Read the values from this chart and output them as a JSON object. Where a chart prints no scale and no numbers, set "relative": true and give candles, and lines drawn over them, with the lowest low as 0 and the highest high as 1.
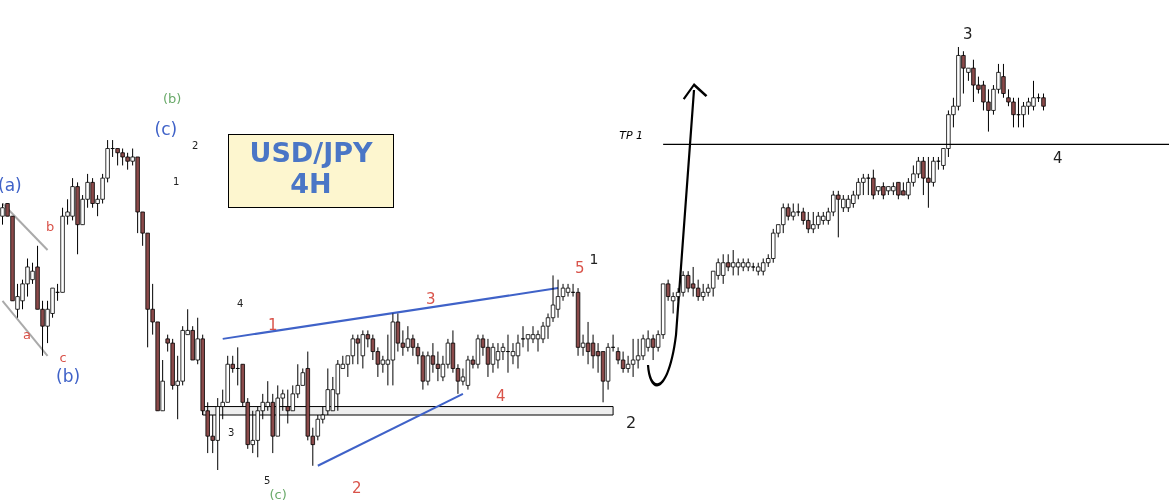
{
  "chart_data": {
    "type": "candlestick",
    "title": "USD/JPY 4H",
    "relative": true,
    "categories": [
      null,
      null,
      null,
      null,
      null,
      null,
      null,
      null,
      null,
      null,
      null,
      null,
      null,
      null,
      null,
      null,
      null,
      null,
      null,
      null,
      null,
      null,
      null,
      null,
      null,
      null,
      null,
      null,
      null,
      null,
      null,
      null,
      null,
      null,
      null,
      null,
      null,
      null,
      null,
      null,
      null,
      null,
      null,
      null,
      null,
      null,
      null,
      null,
      null,
      null,
      null,
      null,
      null,
      null,
      null,
      null,
      null,
      null,
      null,
      null,
      null,
      null,
      null,
      null,
      null,
      null,
      null,
      null,
      null,
      null,
      null,
      null,
      null,
      null,
      null,
      null,
      null,
      null,
      null,
      null,
      null,
      null,
      null,
      null,
      null,
      null,
      null,
      null,
      null,
      null,
      null,
      null,
      null,
      null,
      null,
      null,
      null,
      null,
      null,
      null,
      null,
      null,
      null,
      null,
      null,
      null,
      null,
      null,
      null,
      null,
      null,
      null,
      null,
      null,
      null,
      null,
      null,
      null,
      null,
      null,
      null,
      null,
      null,
      null,
      null,
      null,
      null,
      null,
      null,
      null,
      null,
      null,
      null,
      null,
      null,
      null,
      null,
      null,
      null,
      null,
      null,
      null,
      null,
      null,
      null,
      null,
      null,
      null,
      null,
      null,
      null,
      null,
      null,
      null,
      null,
      null,
      null,
      null,
      null,
      null,
      null,
      null,
      null,
      null,
      null,
      null,
      null,
      null,
      null,
      null,
      null,
      null,
      null,
      null,
      null,
      null,
      null,
      null,
      null,
      null,
      null,
      null,
      null,
      null,
      null,
      null,
      null,
      null,
      null,
      null,
      null,
      null,
      null,
      null,
      null,
      null,
      null,
      null,
      null,
      null,
      null,
      null,
      null,
      null,
      null,
      null,
      null,
      null,
      null
    ],
    "ohlc": [
      [
        0.6,
        0.63,
        0.58,
        0.62
      ],
      [
        0.63,
        0.63,
        0.6,
        0.6
      ],
      [
        0.6,
        0.6,
        0.4,
        0.4
      ],
      [
        0.38,
        0.44,
        0.36,
        0.41
      ],
      [
        0.4,
        0.45,
        0.38,
        0.44
      ],
      [
        0.44,
        0.5,
        0.41,
        0.48
      ],
      [
        0.45,
        0.49,
        0.44,
        0.47
      ],
      [
        0.48,
        0.53,
        0.38,
        0.38
      ],
      [
        0.38,
        0.4,
        0.27,
        0.34
      ],
      [
        0.34,
        0.4,
        0.3,
        0.38
      ],
      [
        0.37,
        0.43,
        0.36,
        0.43
      ],
      [
        0.42,
        0.44,
        0.4,
        0.42
      ],
      [
        0.42,
        0.62,
        0.42,
        0.6
      ],
      [
        0.6,
        0.64,
        0.58,
        0.61
      ],
      [
        0.6,
        0.69,
        0.59,
        0.67
      ],
      [
        0.67,
        0.68,
        0.51,
        0.58
      ],
      [
        0.58,
        0.65,
        0.58,
        0.64
      ],
      [
        0.64,
        0.7,
        0.62,
        0.68
      ],
      [
        0.68,
        0.69,
        0.62,
        0.63
      ],
      [
        0.63,
        0.65,
        0.6,
        0.64
      ],
      [
        0.64,
        0.7,
        0.63,
        0.69
      ],
      [
        0.69,
        0.78,
        0.68,
        0.76
      ],
      [
        0.76,
        0.78,
        0.74,
        0.76
      ],
      [
        0.76,
        0.76,
        0.72,
        0.75
      ],
      [
        0.75,
        0.76,
        0.72,
        0.74
      ],
      [
        0.74,
        0.75,
        0.71,
        0.73
      ],
      [
        0.73,
        0.76,
        0.72,
        0.74
      ],
      [
        0.74,
        0.74,
        0.56,
        0.61
      ],
      [
        0.61,
        0.61,
        0.53,
        0.56
      ],
      [
        0.56,
        0.56,
        0.29,
        0.38
      ],
      [
        0.38,
        0.44,
        0.32,
        0.35
      ],
      [
        0.35,
        0.35,
        0.14,
        0.14
      ],
      [
        0.14,
        0.26,
        0.14,
        0.21
      ],
      [
        0.31,
        0.32,
        0.28,
        0.3
      ],
      [
        0.3,
        0.31,
        0.19,
        0.2
      ],
      [
        0.2,
        0.27,
        0.12,
        0.21
      ],
      [
        0.21,
        0.34,
        0.2,
        0.33
      ],
      [
        0.32,
        0.38,
        0.32,
        0.33
      ],
      [
        0.33,
        0.34,
        0.26,
        0.26
      ],
      [
        0.26,
        0.36,
        0.25,
        0.31
      ],
      [
        0.31,
        0.32,
        0.13,
        0.14
      ],
      [
        0.14,
        0.16,
        0.04,
        0.08
      ],
      [
        0.08,
        0.13,
        0.04,
        0.07
      ],
      [
        0.07,
        0.17,
        0.0,
        0.15
      ],
      [
        0.15,
        0.19,
        0.12,
        0.16
      ],
      [
        0.16,
        0.27,
        0.16,
        0.25
      ],
      [
        0.25,
        0.27,
        0.23,
        0.24
      ],
      [
        0.24,
        0.29,
        0.2,
        0.24
      ],
      [
        0.25,
        0.25,
        0.15,
        0.16
      ],
      [
        0.16,
        0.17,
        0.05,
        0.06
      ],
      [
        0.06,
        0.14,
        0.04,
        0.07
      ],
      [
        0.07,
        0.15,
        0.03,
        0.14
      ],
      [
        0.14,
        0.18,
        0.12,
        0.16
      ],
      [
        0.15,
        0.21,
        0.14,
        0.16
      ],
      [
        0.16,
        0.18,
        0.04,
        0.08
      ],
      [
        0.08,
        0.2,
        0.08,
        0.17
      ],
      [
        0.17,
        0.19,
        0.14,
        0.18
      ],
      [
        0.15,
        0.19,
        0.11,
        0.14
      ],
      [
        0.14,
        0.2,
        0.14,
        0.18
      ],
      [
        0.18,
        0.25,
        0.17,
        0.2
      ],
      [
        0.2,
        0.24,
        0.2,
        0.23
      ],
      [
        0.24,
        0.28,
        0.07,
        0.08
      ],
      [
        0.08,
        0.1,
        0.01,
        0.06
      ],
      [
        0.08,
        0.13,
        0.07,
        0.12
      ],
      [
        0.12,
        0.15,
        0.11,
        0.13
      ],
      [
        0.14,
        0.24,
        0.13,
        0.19
      ],
      [
        0.14,
        0.22,
        0.14,
        0.19
      ],
      [
        0.18,
        0.26,
        0.14,
        0.25
      ],
      [
        0.24,
        0.27,
        0.24,
        0.25
      ],
      [
        0.25,
        0.27,
        0.22,
        0.27
      ],
      [
        0.27,
        0.32,
        0.25,
        0.31
      ],
      [
        0.31,
        0.32,
        0.25,
        0.3
      ],
      [
        0.27,
        0.33,
        0.24,
        0.32
      ],
      [
        0.32,
        0.33,
        0.29,
        0.31
      ],
      [
        0.31,
        0.32,
        0.26,
        0.28
      ],
      [
        0.28,
        0.29,
        0.22,
        0.25
      ],
      [
        0.25,
        0.27,
        0.23,
        0.26
      ],
      [
        0.25,
        0.32,
        0.2,
        0.26
      ],
      [
        0.26,
        0.37,
        0.2,
        0.35
      ],
      [
        0.35,
        0.37,
        0.28,
        0.3
      ],
      [
        0.3,
        0.33,
        0.27,
        0.29
      ],
      [
        0.29,
        0.34,
        0.28,
        0.31
      ],
      [
        0.31,
        0.32,
        0.27,
        0.29
      ],
      [
        0.29,
        0.3,
        0.25,
        0.27
      ],
      [
        0.27,
        0.28,
        0.19,
        0.21
      ],
      [
        0.21,
        0.28,
        0.2,
        0.27
      ],
      [
        0.27,
        0.3,
        0.23,
        0.25
      ],
      [
        0.25,
        0.28,
        0.21,
        0.24
      ],
      [
        0.22,
        0.27,
        0.21,
        0.25
      ],
      [
        0.25,
        0.31,
        0.24,
        0.3
      ],
      [
        0.3,
        0.33,
        0.23,
        0.24
      ],
      [
        0.24,
        0.25,
        0.18,
        0.21
      ],
      [
        0.21,
        0.24,
        0.2,
        0.22
      ],
      [
        0.2,
        0.27,
        0.19,
        0.26
      ],
      [
        0.26,
        0.27,
        0.24,
        0.25
      ],
      [
        0.25,
        0.32,
        0.24,
        0.31
      ],
      [
        0.31,
        0.32,
        0.27,
        0.29
      ],
      [
        0.29,
        0.31,
        0.22,
        0.25
      ],
      [
        0.25,
        0.3,
        0.23,
        0.29
      ],
      [
        0.26,
        0.3,
        0.24,
        0.28
      ],
      [
        0.28,
        0.3,
        0.26,
        0.29
      ],
      [
        0.28,
        0.32,
        0.23,
        0.28
      ],
      [
        0.27,
        0.3,
        0.25,
        0.28
      ],
      [
        0.27,
        0.32,
        0.24,
        0.3
      ],
      [
        0.31,
        0.34,
        0.29,
        0.31
      ],
      [
        0.31,
        0.32,
        0.28,
        0.32
      ],
      [
        0.31,
        0.34,
        0.3,
        0.32
      ],
      [
        0.31,
        0.33,
        0.28,
        0.32
      ],
      [
        0.31,
        0.35,
        0.3,
        0.34
      ],
      [
        0.34,
        0.37,
        0.31,
        0.36
      ],
      [
        0.36,
        0.46,
        0.35,
        0.39
      ],
      [
        0.38,
        0.45,
        0.36,
        0.41
      ],
      [
        0.41,
        0.44,
        0.4,
        0.43
      ],
      [
        0.42,
        0.44,
        0.41,
        0.43
      ],
      [
        0.42,
        0.44,
        0.41,
        0.42
      ],
      [
        0.42,
        0.43,
        0.27,
        0.29
      ],
      [
        0.29,
        0.32,
        0.27,
        0.3
      ],
      [
        0.3,
        0.35,
        0.25,
        0.28
      ],
      [
        0.3,
        0.32,
        0.24,
        0.27
      ],
      [
        0.28,
        0.3,
        0.23,
        0.27
      ],
      [
        0.28,
        0.28,
        0.16,
        0.21
      ],
      [
        0.21,
        0.3,
        0.19,
        0.29
      ],
      [
        0.29,
        0.32,
        0.28,
        0.29
      ],
      [
        0.28,
        0.29,
        0.25,
        0.26
      ],
      [
        0.26,
        0.28,
        0.23,
        0.24
      ],
      [
        0.24,
        0.27,
        0.23,
        0.25
      ],
      [
        0.25,
        0.31,
        0.22,
        0.26
      ],
      [
        0.26,
        0.31,
        0.24,
        0.27
      ],
      [
        0.27,
        0.32,
        0.26,
        0.31
      ],
      [
        0.29,
        0.33,
        0.28,
        0.31
      ],
      [
        0.31,
        0.32,
        0.26,
        0.29
      ],
      [
        0.29,
        0.33,
        0.28,
        0.32
      ],
      [
        0.32,
        0.44,
        0.31,
        0.44
      ],
      [
        0.44,
        0.45,
        0.4,
        0.41
      ],
      [
        0.4,
        0.42,
        0.37,
        0.41
      ],
      [
        0.41,
        0.43,
        0.4,
        0.42
      ],
      [
        0.42,
        0.47,
        0.41,
        0.46
      ],
      [
        0.46,
        0.47,
        0.42,
        0.43
      ],
      [
        0.44,
        0.48,
        0.41,
        0.43
      ],
      [
        0.43,
        0.45,
        0.4,
        0.41
      ],
      [
        0.41,
        0.44,
        0.4,
        0.42
      ],
      [
        0.42,
        0.44,
        0.41,
        0.43
      ],
      [
        0.43,
        0.47,
        0.41,
        0.47
      ],
      [
        0.46,
        0.5,
        0.45,
        0.49
      ],
      [
        0.46,
        0.51,
        0.44,
        0.49
      ],
      [
        0.49,
        0.51,
        0.47,
        0.48
      ],
      [
        0.48,
        0.52,
        0.46,
        0.49
      ],
      [
        0.48,
        0.5,
        0.46,
        0.49
      ],
      [
        0.48,
        0.5,
        0.47,
        0.49
      ],
      [
        0.48,
        0.5,
        0.47,
        0.49
      ],
      [
        0.48,
        0.49,
        0.47,
        0.48
      ],
      [
        0.47,
        0.49,
        0.46,
        0.48
      ],
      [
        0.47,
        0.5,
        0.46,
        0.49
      ],
      [
        0.49,
        0.51,
        0.48,
        0.5
      ],
      [
        0.5,
        0.57,
        0.49,
        0.56
      ],
      [
        0.56,
        0.58,
        0.55,
        0.58
      ],
      [
        0.58,
        0.63,
        0.56,
        0.62
      ],
      [
        0.62,
        0.63,
        0.59,
        0.6
      ],
      [
        0.6,
        0.63,
        0.59,
        0.61
      ],
      [
        0.61,
        0.63,
        0.6,
        0.61
      ],
      [
        0.61,
        0.62,
        0.58,
        0.59
      ],
      [
        0.59,
        0.61,
        0.56,
        0.57
      ],
      [
        0.57,
        0.61,
        0.56,
        0.58
      ],
      [
        0.58,
        0.61,
        0.57,
        0.6
      ],
      [
        0.59,
        0.61,
        0.58,
        0.6
      ],
      [
        0.59,
        0.62,
        0.58,
        0.61
      ],
      [
        0.61,
        0.66,
        0.6,
        0.65
      ],
      [
        0.65,
        0.66,
        0.55,
        0.64
      ],
      [
        0.62,
        0.65,
        0.61,
        0.64
      ],
      [
        0.62,
        0.65,
        0.61,
        0.64
      ],
      [
        0.63,
        0.66,
        0.62,
        0.65
      ],
      [
        0.65,
        0.69,
        0.64,
        0.68
      ],
      [
        0.68,
        0.7,
        0.65,
        0.69
      ],
      [
        0.69,
        0.7,
        0.65,
        0.69
      ],
      [
        0.69,
        0.71,
        0.64,
        0.65
      ],
      [
        0.66,
        0.67,
        0.65,
        0.67
      ],
      [
        0.67,
        0.68,
        0.64,
        0.65
      ],
      [
        0.66,
        0.67,
        0.65,
        0.67
      ],
      [
        0.66,
        0.68,
        0.65,
        0.67
      ],
      [
        0.68,
        0.68,
        0.64,
        0.65
      ],
      [
        0.66,
        0.68,
        0.65,
        0.65
      ],
      [
        0.65,
        0.69,
        0.64,
        0.68
      ],
      [
        0.68,
        0.72,
        0.67,
        0.7
      ],
      [
        0.7,
        0.74,
        0.69,
        0.73
      ],
      [
        0.73,
        0.74,
        0.65,
        0.69
      ],
      [
        0.69,
        0.74,
        0.62,
        0.68
      ],
      [
        0.68,
        0.74,
        0.67,
        0.73
      ],
      [
        0.73,
        0.74,
        0.71,
        0.73
      ],
      [
        0.72,
        0.76,
        0.71,
        0.76
      ],
      [
        0.76,
        0.85,
        0.74,
        0.84
      ],
      [
        0.84,
        0.88,
        0.81,
        0.86
      ],
      [
        0.86,
        1.0,
        0.85,
        0.98
      ],
      [
        0.98,
        0.99,
        0.89,
        0.95
      ],
      [
        0.94,
        0.95,
        0.92,
        0.95
      ],
      [
        0.95,
        0.97,
        0.87,
        0.91
      ],
      [
        0.91,
        0.93,
        0.89,
        0.9
      ],
      [
        0.91,
        0.92,
        0.85,
        0.87
      ],
      [
        0.87,
        0.9,
        0.8,
        0.85
      ],
      [
        0.85,
        0.91,
        0.84,
        0.9
      ],
      [
        0.9,
        0.96,
        0.89,
        0.94
      ],
      [
        0.93,
        0.96,
        0.88,
        0.89
      ],
      [
        0.88,
        0.9,
        0.86,
        0.87
      ],
      [
        0.87,
        0.88,
        0.81,
        0.84
      ],
      [
        0.84,
        0.88,
        0.81,
        0.84
      ],
      [
        0.84,
        0.87,
        0.81,
        0.86
      ],
      [
        0.86,
        0.88,
        0.84,
        0.87
      ],
      [
        0.86,
        0.92,
        0.85,
        0.88
      ],
      [
        0.88,
        0.89,
        0.87,
        0.88
      ],
      [
        0.88,
        0.89,
        0.85,
        0.86
      ]
    ],
    "series": [
      {
        "type": "line",
        "color": "#aaaaaa",
        "values": [
          0.63,
          null,
          null,
          null,
          null,
          null,
          null,
          null,
          null,
          0.52,
          null,
          null,
          null,
          null,
          null,
          null,
          null,
          null,
          null,
          null,
          null,
          null,
          null,
          null,
          null,
          null,
          null,
          null,
          null,
          null,
          null,
          null,
          null,
          null,
          null,
          null,
          null,
          null,
          null,
          null,
          null,
          null,
          null,
          null,
          null,
          null,
          null,
          null,
          null,
          null,
          null,
          null,
          null,
          null,
          null,
          null,
          null,
          null,
          null,
          null,
          null,
          null,
          null,
          null,
          null,
          null,
          null,
          null,
          null,
          null,
          null,
          null,
          null,
          null,
          null,
          null,
          null,
          null,
          null,
          null,
          null,
          null,
          null,
          null,
          null,
          null,
          null,
          null,
          null,
          null,
          null,
          null,
          null,
          null,
          null,
          null,
          null,
          null,
          null,
          null,
          null,
          null,
          null,
          null,
          null,
          null,
          null,
          null,
          null,
          null,
          null,
          null,
          null,
          null,
          null,
          null,
          null,
          null,
          null,
          null,
          null,
          null,
          null,
          null,
          null,
          null,
          null,
          null,
          null,
          null,
          null,
          null,
          null,
          null,
          null,
          null,
          null,
          null,
          null,
          null,
          null,
          null,
          null,
          null,
          null,
          null,
          null,
          null,
          null,
          null,
          null,
          null,
          null,
          null,
          null,
          null,
          null,
          null,
          null,
          null,
          null,
          null,
          null,
          null,
          null,
          null,
          null,
          null,
          null,
          null,
          null,
          null,
          null,
          null,
          null,
          null,
          null,
          null,
          null,
          null,
          null,
          null,
          null,
          null,
          null,
          null,
          null,
          null,
          null,
          null,
          null,
          null,
          null,
          null,
          null,
          null,
          null,
          null,
          null,
          null,
          null,
          null,
          null,
          null,
          null,
          null,
          null,
          null,
          null
        ]
      },
      {
        "type": "line",
        "color": "#aaaaaa",
        "values": [
          0.4,
          null,
          null,
          null,
          null,
          null,
          null,
          null,
          null,
          0.27,
          null,
          null,
          null,
          null,
          null,
          null,
          null,
          null,
          null,
          null,
          null,
          null,
          null,
          null,
          null,
          null,
          null,
          null,
          null,
          null,
          null,
          null,
          null,
          null,
          null,
          null,
          null,
          null,
          null,
          null,
          null,
          null,
          null,
          null,
          null,
          null,
          null,
          null,
          null,
          null,
          null,
          null,
          null,
          null,
          null,
          null,
          null,
          null,
          null,
          null,
          null,
          null,
          null,
          null,
          null,
          null,
          null,
          null,
          null,
          null,
          null,
          null,
          null,
          null,
          null,
          null,
          null,
          null,
          null,
          null,
          null,
          null,
          null,
          null,
          null,
          null,
          null,
          null,
          null,
          null,
          null,
          null,
          null,
          null,
          null,
          null,
          null,
          null,
          null,
          null,
          null,
          null,
          null,
          null,
          null,
          null,
          null,
          null,
          null,
          null,
          null,
          null,
          null,
          null,
          null,
          null,
          null,
          null,
          null,
          null,
          null,
          null,
          null,
          null,
          null,
          null,
          null,
          null,
          null,
          null,
          null,
          null,
          null,
          null,
          null,
          null,
          null,
          null,
          null,
          null,
          null,
          null,
          null,
          null,
          null,
          null,
          null,
          null,
          null,
          null,
          null,
          null,
          null,
          null,
          null,
          null,
          null,
          null,
          null,
          null,
          null,
          null,
          null,
          null,
          null,
          null,
          null,
          null,
          null,
          null,
          null,
          null,
          null,
          null,
          null,
          null,
          null,
          null,
          null,
          null,
          null,
          null,
          null,
          null,
          null,
          null,
          null,
          null,
          null,
          null,
          null,
          null,
          null,
          null,
          null,
          null,
          null,
          null,
          null,
          null,
          null,
          null,
          null,
          null,
          null,
          null,
          null,
          null,
          null
        ]
      },
      {
        "type": "line",
        "color": "#3f62c8",
        "values": [
          null,
          null,
          null,
          null,
          null,
          null,
          null,
          null,
          null,
          null,
          null,
          null,
          null,
          null,
          null,
          null,
          null,
          null,
          null,
          null,
          null,
          null,
          null,
          null,
          null,
          null,
          null,
          null,
          null,
          null,
          null,
          null,
          null,
          null,
          null,
          null,
          null,
          null,
          null,
          null,
          null,
          null,
          null,
          null,
          0.31,
          null,
          null,
          null,
          null,
          null,
          null,
          null,
          null,
          null,
          null,
          null,
          null,
          null,
          null,
          null,
          null,
          null,
          null,
          null,
          null,
          null,
          null,
          null,
          null,
          null,
          null,
          null,
          null,
          null,
          null,
          null,
          null,
          null,
          null,
          null,
          null,
          null,
          null,
          null,
          null,
          null,
          null,
          null,
          null,
          null,
          null,
          null,
          null,
          null,
          null,
          null,
          null,
          null,
          null,
          null,
          null,
          null,
          null,
          null,
          null,
          null,
          null,
          null,
          null,
          null,
          null,
          0.43,
          null,
          null,
          null,
          null,
          null,
          null,
          null,
          null,
          null,
          null,
          null,
          null,
          null,
          null,
          null,
          null,
          null,
          null,
          null,
          null,
          null,
          null,
          null,
          null,
          null,
          null,
          null,
          null,
          null,
          null,
          null,
          null,
          null,
          null,
          null,
          null,
          null,
          null,
          null,
          null,
          null,
          null,
          null,
          null,
          null,
          null,
          null,
          null,
          null,
          null,
          null,
          null,
          null,
          null,
          null,
          null,
          null,
          null,
          null,
          null,
          null,
          null,
          null,
          null,
          null,
          null,
          null,
          null,
          null,
          null,
          null,
          null,
          null,
          null,
          null,
          null,
          null,
          null,
          null,
          null,
          null,
          null,
          null,
          null,
          null,
          null,
          null,
          null,
          null,
          null,
          null,
          null,
          null,
          null,
          null,
          null,
          null
        ]
      },
      {
        "type": "line",
        "color": "#3f62c8",
        "values": [
          null,
          null,
          null,
          null,
          null,
          null,
          null,
          null,
          null,
          null,
          null,
          null,
          null,
          null,
          null,
          null,
          null,
          null,
          null,
          null,
          null,
          null,
          null,
          null,
          null,
          null,
          null,
          null,
          null,
          null,
          null,
          null,
          null,
          null,
          null,
          null,
          null,
          null,
          null,
          null,
          null,
          null,
          null,
          null,
          null,
          null,
          null,
          null,
          null,
          null,
          null,
          null,
          null,
          null,
          null,
          null,
          null,
          null,
          null,
          null,
          null,
          null,
          null,
          0.01,
          null,
          null,
          null,
          null,
          null,
          null,
          null,
          null,
          null,
          null,
          null,
          null,
          null,
          null,
          null,
          null,
          null,
          null,
          null,
          null,
          null,
          null,
          null,
          null,
          null,
          null,
          null,
          null,
          0.18,
          null,
          null,
          null,
          null,
          null,
          null,
          null,
          null,
          null,
          null,
          null,
          null,
          null,
          null,
          null,
          null,
          null,
          null,
          null,
          null,
          null,
          null,
          null,
          null,
          null,
          null,
          null,
          null,
          null,
          null,
          null,
          null,
          null,
          null,
          null,
          null,
          null,
          null,
          null,
          null,
          null,
          null,
          null,
          null,
          null,
          null,
          null,
          null,
          null,
          null,
          null,
          null,
          null,
          null,
          null,
          null,
          null,
          null,
          null,
          null,
          null,
          null,
          null,
          null,
          null,
          null,
          null,
          null,
          null,
          null,
          null,
          null,
          null,
          null,
          null,
          null,
          null,
          null,
          null,
          null,
          null,
          null,
          null,
          null,
          null,
          null,
          null,
          null,
          null,
          null,
          null,
          null,
          null,
          null,
          null,
          null,
          null,
          null,
          null,
          null,
          null,
          null,
          null,
          null,
          null,
          null,
          null,
          null,
          null,
          null,
          null,
          null,
          null,
          null,
          null,
          null
        ]
      }
    ],
    "bands": [
      {
        "axis": "y",
        "from": 0.13,
        "to": 0.15,
        "color": "#eeeeee"
      }
    ],
    "ref_lines": [
      {
        "axis": "y",
        "value": 0.77,
        "label": "TP 1",
        "color": "#000000"
      }
    ],
    "annotations": [
      "(a)",
      "(b)",
      "(c)",
      "2",
      "1",
      "b",
      "a",
      "c",
      "(b)",
      "4",
      "3",
      "5",
      "(c)",
      "1",
      "2",
      "3",
      "4",
      "5",
      "1",
      "2",
      "3",
      "4"
    ]
  }
}
